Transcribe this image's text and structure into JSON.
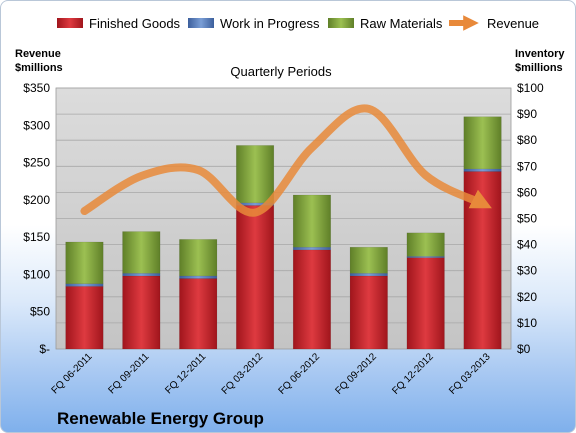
{
  "chart_data": {
    "type": "bar",
    "subtype": "stacked-bar-with-line",
    "title": "Quarterly Periods",
    "footer_title": "Renewable Energy Group",
    "categories": [
      "FQ 06-2011",
      "FQ 09-2011",
      "FQ 12-2011",
      "FQ 03-2012",
      "FQ 06-2012",
      "FQ 09-2012",
      "FQ 12-2012",
      "FQ 03-2013"
    ],
    "left_axis": {
      "label_line1": "Revenue",
      "label_line2": "$millions",
      "ylim": [
        0,
        350
      ],
      "ticks": [
        0,
        50,
        100,
        150,
        200,
        250,
        300,
        350
      ],
      "tick_labels": [
        "$-",
        "$50",
        "$100",
        "$150",
        "$200",
        "$250",
        "$300",
        "$350"
      ]
    },
    "right_axis": {
      "label_line1": "Inventory",
      "label_line2": "$millions",
      "ylim": [
        0,
        100
      ],
      "ticks": [
        0,
        10,
        20,
        30,
        40,
        50,
        60,
        70,
        80,
        90,
        100
      ],
      "tick_labels": [
        "$0",
        "$10",
        "$20",
        "$30",
        "$40",
        "$50",
        "$60",
        "$70",
        "$80",
        "$90",
        "$100"
      ]
    },
    "series": [
      {
        "name": "Finished Goods",
        "kind": "bar",
        "axis": "right",
        "color": "#c0232a",
        "values": [
          24,
          28,
          27,
          55,
          38,
          28,
          35,
          68
        ]
      },
      {
        "name": "Work in Progress",
        "kind": "bar",
        "axis": "right",
        "color": "#4f77b8",
        "values": [
          1,
          1,
          1,
          1,
          1,
          1,
          0.5,
          1
        ]
      },
      {
        "name": "Raw Materials",
        "kind": "bar",
        "axis": "right",
        "color": "#7fa23b",
        "values": [
          16,
          16,
          14,
          22,
          20,
          10,
          9,
          20
        ]
      },
      {
        "name": "Revenue",
        "kind": "line",
        "axis": "left",
        "color": "#e8893a",
        "values": [
          185,
          232,
          240,
          183,
          270,
          322,
          233,
          195
        ]
      }
    ],
    "grid": true,
    "legend_position": "top"
  }
}
